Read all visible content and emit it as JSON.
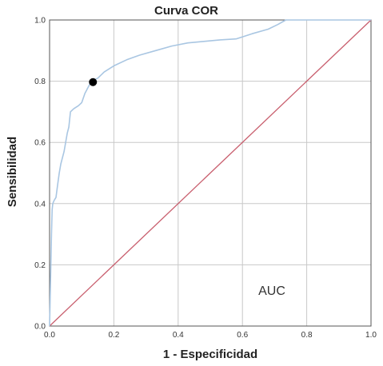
{
  "chart_data": {
    "type": "line",
    "title": "Curva COR",
    "xlabel": "1 - Especificidad",
    "ylabel": "Sensibilidad",
    "xlim": [
      0,
      1
    ],
    "ylim": [
      0,
      1
    ],
    "xticks": [
      "0.0",
      "0.2",
      "0.4",
      "0.6",
      "0.8",
      "1.0"
    ],
    "yticks": [
      "0.0",
      "0.2",
      "0.4",
      "0.6",
      "0.8",
      "1.0"
    ],
    "grid": true,
    "annotation": "AUC",
    "roc_color": "#a9c6e2",
    "reference_color": "#c9606f",
    "marker_color": "#000000",
    "series": [
      {
        "values": [
          [
            0,
            0
          ],
          [
            0.003,
            0.15
          ],
          [
            0.006,
            0.3
          ],
          [
            0.008,
            0.38
          ],
          [
            0.01,
            0.4
          ],
          [
            0.014,
            0.41
          ],
          [
            0.02,
            0.42
          ],
          [
            0.025,
            0.46
          ],
          [
            0.03,
            0.5
          ],
          [
            0.035,
            0.53
          ],
          [
            0.04,
            0.55
          ],
          [
            0.045,
            0.57
          ],
          [
            0.05,
            0.6
          ],
          [
            0.055,
            0.63
          ],
          [
            0.06,
            0.65
          ],
          [
            0.065,
            0.7
          ],
          [
            0.075,
            0.71
          ],
          [
            0.09,
            0.72
          ],
          [
            0.1,
            0.73
          ],
          [
            0.11,
            0.76
          ],
          [
            0.12,
            0.78
          ],
          [
            0.13,
            0.8
          ],
          [
            0.15,
            0.81
          ],
          [
            0.17,
            0.83
          ],
          [
            0.2,
            0.85
          ],
          [
            0.24,
            0.87
          ],
          [
            0.28,
            0.885
          ],
          [
            0.33,
            0.9
          ],
          [
            0.38,
            0.915
          ],
          [
            0.43,
            0.925
          ],
          [
            0.48,
            0.93
          ],
          [
            0.53,
            0.935
          ],
          [
            0.58,
            0.938
          ],
          [
            0.63,
            0.955
          ],
          [
            0.68,
            0.97
          ],
          [
            0.71,
            0.985
          ],
          [
            0.735,
            1.0
          ],
          [
            1.0,
            1.0
          ]
        ]
      },
      {
        "values": [
          [
            0,
            0
          ],
          [
            1,
            1
          ]
        ]
      }
    ],
    "marker": [
      0.135,
      0.797
    ]
  }
}
